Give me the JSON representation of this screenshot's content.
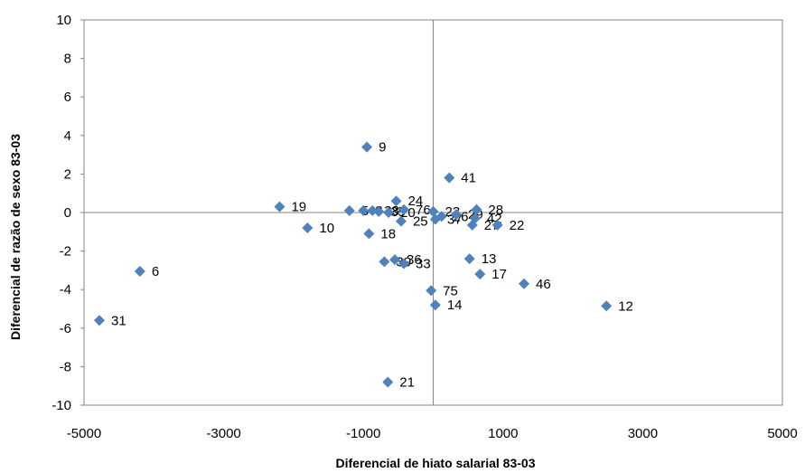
{
  "chart_data": {
    "type": "scatter",
    "xlabel": "Diferencial de hiato salarial 83-03",
    "ylabel": "Diferencial de razão de sexo 83-03",
    "xlim": [
      -5000,
      5000
    ],
    "ylim": [
      -10,
      10
    ],
    "xticks": [
      -5000,
      -3000,
      -1000,
      1000,
      3000,
      5000
    ],
    "yticks": [
      -10,
      -8,
      -6,
      -4,
      -2,
      0,
      2,
      4,
      6,
      8,
      10
    ],
    "grid": false,
    "marker_color": "#4F81BD",
    "points": [
      {
        "label": "31",
        "x": -4780,
        "y": -5.6
      },
      {
        "label": "6",
        "x": -4200,
        "y": -3.05
      },
      {
        "label": "19",
        "x": -2200,
        "y": 0.3
      },
      {
        "label": "10",
        "x": -1800,
        "y": -0.8
      },
      {
        "label": "5",
        "x": -1200,
        "y": 0.1
      },
      {
        "label": "8",
        "x": -1000,
        "y": 0.1
      },
      {
        "label": "9",
        "x": -950,
        "y": 3.4
      },
      {
        "label": "18",
        "x": -920,
        "y": -1.1
      },
      {
        "label": "38",
        "x": -870,
        "y": 0.1
      },
      {
        "label": "35",
        "x": -780,
        "y": 0.05
      },
      {
        "label": "20",
        "x": -640,
        "y": 0.0
      },
      {
        "label": "21",
        "x": -650,
        "y": -8.8
      },
      {
        "label": "30",
        "x": -700,
        "y": -2.55
      },
      {
        "label": "36",
        "x": -550,
        "y": -2.45
      },
      {
        "label": "33",
        "x": -420,
        "y": -2.65
      },
      {
        "label": "24",
        "x": -530,
        "y": 0.6
      },
      {
        "label": "25",
        "x": -460,
        "y": -0.45
      },
      {
        "label": "76",
        "x": -420,
        "y": 0.15
      },
      {
        "label": "23",
        "x": 0,
        "y": 0.05
      },
      {
        "label": "37",
        "x": 30,
        "y": -0.35
      },
      {
        "label": "26",
        "x": 120,
        "y": -0.2
      },
      {
        "label": "29",
        "x": 330,
        "y": -0.1
      },
      {
        "label": "41",
        "x": 230,
        "y": 1.8
      },
      {
        "label": "42",
        "x": 600,
        "y": -0.3
      },
      {
        "label": "27",
        "x": 560,
        "y": -0.65
      },
      {
        "label": "28",
        "x": 620,
        "y": 0.15
      },
      {
        "label": "22",
        "x": 920,
        "y": -0.65
      },
      {
        "label": "13",
        "x": 520,
        "y": -2.4
      },
      {
        "label": "17",
        "x": 670,
        "y": -3.2
      },
      {
        "label": "75",
        "x": -30,
        "y": -4.05
      },
      {
        "label": "14",
        "x": 30,
        "y": -4.8
      },
      {
        "label": "46",
        "x": 1300,
        "y": -3.7
      },
      {
        "label": "12",
        "x": 2480,
        "y": -4.85
      }
    ]
  }
}
